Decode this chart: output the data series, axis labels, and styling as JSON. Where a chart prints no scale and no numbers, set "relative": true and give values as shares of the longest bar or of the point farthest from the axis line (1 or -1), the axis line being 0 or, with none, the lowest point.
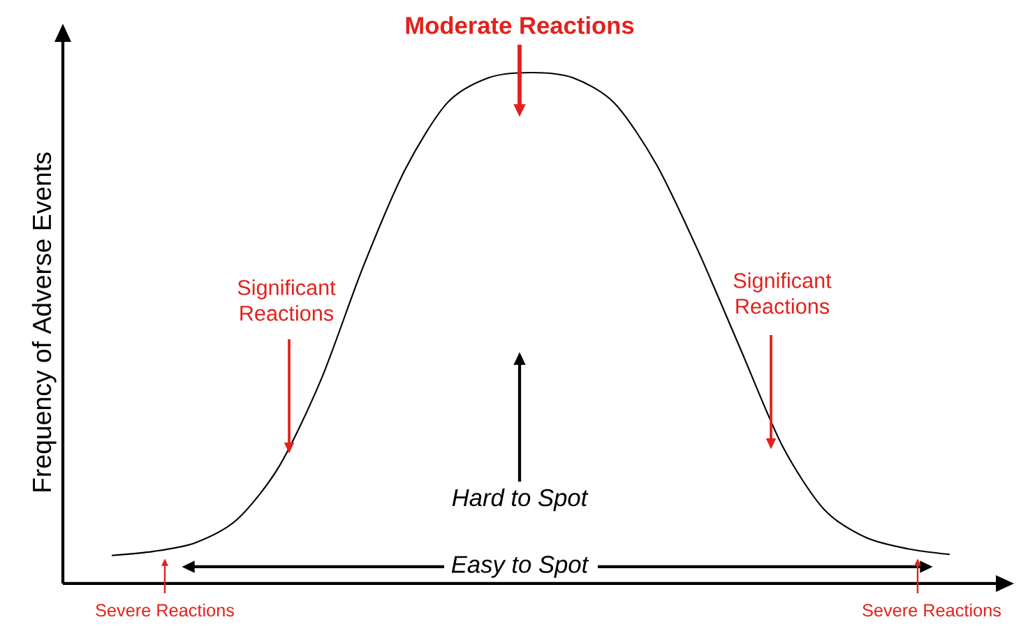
{
  "chart_data": {
    "type": "line",
    "relative": true,
    "ylabel": "Frequency of Adverse Events",
    "categories": [
      null,
      null,
      null,
      null,
      null,
      null,
      null,
      null,
      null,
      null,
      null,
      null,
      null,
      null,
      null,
      null,
      null,
      null,
      null,
      null,
      null
    ],
    "series": [
      {
        "color": "#000000",
        "values": [
          0.055,
          0.063,
          0.08,
          0.126,
          0.23,
          0.4,
          0.62,
          0.81,
          0.94,
          0.99,
          1.0,
          0.99,
          0.94,
          0.82,
          0.65,
          0.46,
          0.27,
          0.145,
          0.09,
          0.068,
          0.057
        ]
      }
    ],
    "annotations": [
      "Moderate Reactions",
      "Significant Reactions",
      "Significant Reactions",
      "Hard to Spot",
      "Easy to Spot",
      "Severe Reactions",
      "Severe Reactions"
    ]
  }
}
